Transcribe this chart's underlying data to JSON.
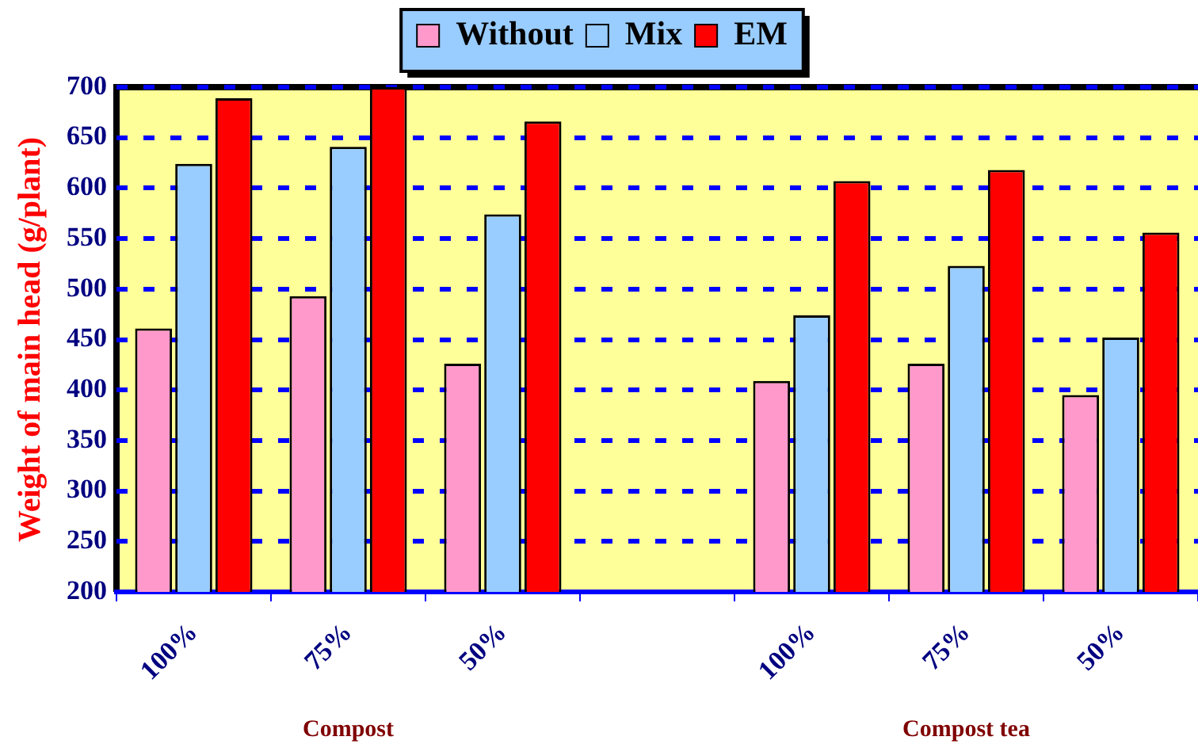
{
  "chart_data": {
    "type": "bar",
    "ylabel": "Weight of main head (g/plant)",
    "categories": [
      "100%",
      "75%",
      "50%",
      null,
      "100%",
      "75%",
      "50%"
    ],
    "series": [
      {
        "name": "Without",
        "color": "#ff99cc",
        "values": [
          461,
          493,
          426,
          null,
          409,
          426,
          395
        ]
      },
      {
        "name": "Mix",
        "color": "#99ccff",
        "values": [
          624,
          641,
          574,
          null,
          474,
          523,
          452
        ]
      },
      {
        "name": "EM",
        "color": "#ff0000",
        "values": [
          689,
          700,
          666,
          null,
          607,
          618,
          556
        ]
      }
    ],
    "ylim": [
      200,
      700
    ],
    "yticks": [
      200,
      250,
      300,
      350,
      400,
      450,
      500,
      550,
      600,
      650,
      700
    ],
    "grid": "y",
    "legend": "top",
    "annotations": [
      "Compost",
      "Compost tea"
    ]
  }
}
